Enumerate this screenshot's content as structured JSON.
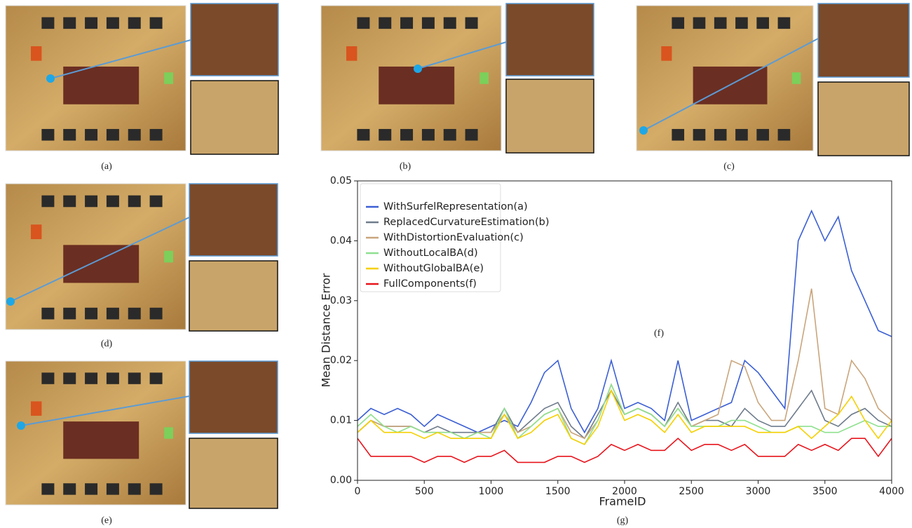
{
  "panel_labels": [
    "(a)",
    "(b)",
    "(c)",
    "(d)",
    "(e)"
  ],
  "chart_data": {
    "type": "line",
    "caption": "(g)",
    "inset_label": "(f)",
    "xlabel": "FrameID",
    "ylabel": "Mean Distance Error",
    "xlim": [
      0,
      4000
    ],
    "ylim": [
      0,
      0.05
    ],
    "xticks": [
      0,
      500,
      1000,
      1500,
      2000,
      2500,
      3000,
      3500,
      4000
    ],
    "yticks": [
      {
        "value": 0,
        "label": "0.00"
      },
      {
        "value": 0.01,
        "label": "0.01"
      },
      {
        "value": 0.02,
        "label": "0.02"
      },
      {
        "value": 0.03,
        "label": "0.03"
      },
      {
        "value": 0.04,
        "label": "0.04"
      },
      {
        "value": 0.05,
        "label": "0.05"
      }
    ],
    "legend": "upper left",
    "x": [
      0,
      100,
      200,
      300,
      400,
      500,
      600,
      700,
      800,
      900,
      1000,
      1100,
      1200,
      1300,
      1400,
      1500,
      1600,
      1700,
      1800,
      1900,
      2000,
      2100,
      2200,
      2300,
      2400,
      2500,
      2600,
      2700,
      2800,
      2900,
      3000,
      3100,
      3200,
      3300,
      3400,
      3500,
      3600,
      3700,
      3800,
      3900,
      4000
    ],
    "series": [
      {
        "name": "WithSurfelRepresentation(a)",
        "color": "#3b5fd4",
        "values": [
          0.01,
          0.012,
          0.011,
          0.012,
          0.011,
          0.009,
          0.011,
          0.01,
          0.009,
          0.008,
          0.009,
          0.01,
          0.009,
          0.013,
          0.018,
          0.02,
          0.012,
          0.008,
          0.012,
          0.02,
          0.012,
          0.013,
          0.012,
          0.01,
          0.02,
          0.01,
          0.011,
          0.012,
          0.013,
          0.02,
          0.018,
          0.015,
          0.012,
          0.04,
          0.045,
          0.04,
          0.044,
          0.035,
          0.03,
          0.025,
          0.024
        ]
      },
      {
        "name": "ReplacedCurvatureEstimation(b)",
        "color": "#6e7b8b",
        "values": [
          0.008,
          0.01,
          0.009,
          0.009,
          0.009,
          0.008,
          0.009,
          0.008,
          0.008,
          0.008,
          0.008,
          0.012,
          0.008,
          0.01,
          0.012,
          0.013,
          0.009,
          0.007,
          0.011,
          0.015,
          0.011,
          0.012,
          0.011,
          0.009,
          0.013,
          0.009,
          0.01,
          0.01,
          0.009,
          0.012,
          0.01,
          0.009,
          0.009,
          0.012,
          0.015,
          0.01,
          0.009,
          0.011,
          0.012,
          0.01,
          0.009
        ]
      },
      {
        "name": "WithDistortionEvaluation(c)",
        "color": "#c9a57c",
        "values": [
          0.008,
          0.01,
          0.009,
          0.009,
          0.009,
          0.008,
          0.008,
          0.008,
          0.007,
          0.008,
          0.008,
          0.011,
          0.008,
          0.009,
          0.011,
          0.012,
          0.008,
          0.007,
          0.01,
          0.016,
          0.011,
          0.012,
          0.011,
          0.009,
          0.012,
          0.009,
          0.01,
          0.011,
          0.02,
          0.019,
          0.013,
          0.01,
          0.01,
          0.02,
          0.032,
          0.012,
          0.011,
          0.02,
          0.017,
          0.012,
          0.01
        ]
      },
      {
        "name": "WithoutLocalBA(d)",
        "color": "#8fe08f",
        "values": [
          0.009,
          0.011,
          0.009,
          0.008,
          0.009,
          0.008,
          0.008,
          0.008,
          0.007,
          0.008,
          0.007,
          0.012,
          0.007,
          0.009,
          0.011,
          0.012,
          0.007,
          0.006,
          0.01,
          0.016,
          0.011,
          0.012,
          0.011,
          0.009,
          0.012,
          0.009,
          0.009,
          0.009,
          0.01,
          0.01,
          0.009,
          0.008,
          0.008,
          0.009,
          0.009,
          0.008,
          0.008,
          0.009,
          0.01,
          0.009,
          0.009
        ]
      },
      {
        "name": "WithoutGlobalBA(e)",
        "color": "#f5d000",
        "values": [
          0.008,
          0.01,
          0.008,
          0.008,
          0.008,
          0.007,
          0.008,
          0.007,
          0.007,
          0.007,
          0.007,
          0.011,
          0.007,
          0.008,
          0.01,
          0.011,
          0.007,
          0.006,
          0.009,
          0.015,
          0.01,
          0.011,
          0.01,
          0.008,
          0.011,
          0.008,
          0.009,
          0.009,
          0.009,
          0.009,
          0.008,
          0.008,
          0.008,
          0.009,
          0.007,
          0.009,
          0.011,
          0.014,
          0.01,
          0.007,
          0.01
        ]
      },
      {
        "name": "FullComponents(f)",
        "color": "#e8141c",
        "values": [
          0.007,
          0.004,
          0.004,
          0.004,
          0.004,
          0.003,
          0.004,
          0.004,
          0.003,
          0.004,
          0.004,
          0.005,
          0.003,
          0.003,
          0.003,
          0.004,
          0.004,
          0.003,
          0.004,
          0.006,
          0.005,
          0.006,
          0.005,
          0.005,
          0.007,
          0.005,
          0.006,
          0.006,
          0.005,
          0.006,
          0.004,
          0.004,
          0.004,
          0.006,
          0.005,
          0.006,
          0.005,
          0.007,
          0.007,
          0.004,
          0.007
        ]
      }
    ]
  }
}
